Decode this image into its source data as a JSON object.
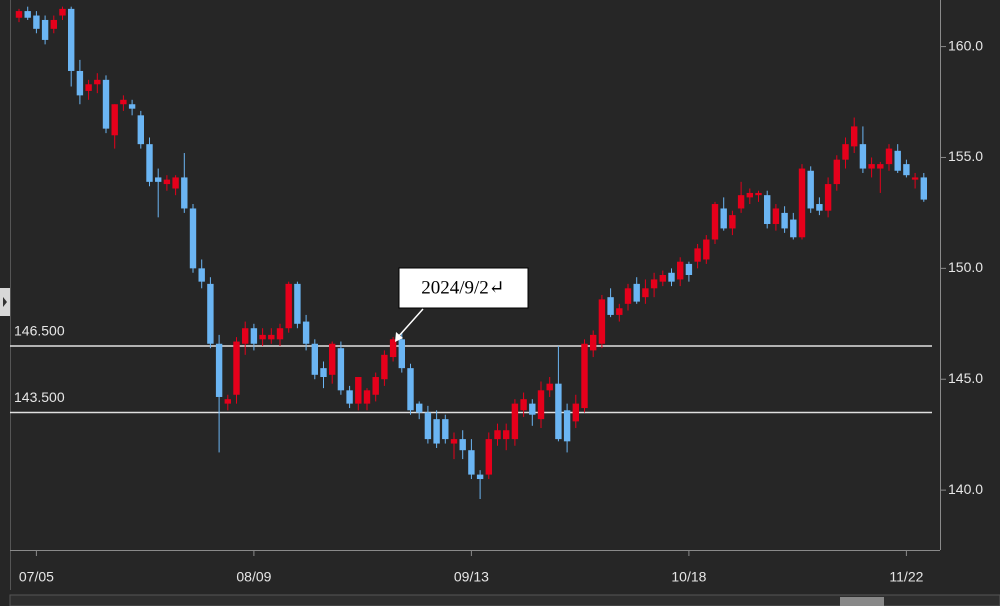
{
  "chart_data": {
    "type": "candlestick",
    "categories": [
      null,
      null,
      "07/05",
      null,
      null,
      null,
      null,
      null,
      null,
      null,
      null,
      null,
      null,
      null,
      null,
      null,
      null,
      null,
      null,
      null,
      null,
      null,
      null,
      null,
      null,
      null,
      null,
      "08/09",
      null,
      null,
      null,
      null,
      null,
      null,
      null,
      null,
      null,
      null,
      null,
      null,
      null,
      null,
      null,
      null,
      null,
      null,
      null,
      null,
      null,
      null,
      null,
      null,
      "09/13",
      null,
      null,
      null,
      null,
      null,
      null,
      null,
      null,
      null,
      null,
      null,
      null,
      null,
      null,
      null,
      null,
      null,
      null,
      null,
      null,
      null,
      null,
      null,
      null,
      "10/18",
      null,
      null,
      null,
      null,
      null,
      null,
      null,
      null,
      null,
      null,
      null,
      null,
      null,
      null,
      null,
      null,
      null,
      null,
      null,
      null,
      null,
      null,
      null,
      null,
      "11/22",
      null,
      null
    ],
    "open": [
      161.3,
      161.6,
      161.4,
      161.2,
      160.8,
      161.4,
      161.7,
      158.9,
      158.0,
      158.3,
      158.5,
      156.0,
      157.4,
      157.4,
      156.9,
      155.6,
      154.1,
      153.8,
      153.6,
      154.1,
      152.7,
      150.0,
      149.3,
      146.6,
      143.9,
      144.3,
      146.6,
      147.3,
      146.8,
      146.8,
      146.8,
      147.3,
      149.3,
      147.6,
      146.6,
      145.5,
      145.2,
      146.4,
      144.5,
      143.9,
      143.9,
      144.3,
      145.0,
      146.0,
      146.8,
      145.5,
      143.9,
      143.5,
      143.2,
      143.2,
      142.1,
      142.3,
      141.8,
      140.7,
      140.7,
      142.3,
      142.3,
      142.3,
      143.6,
      143.9,
      143.2,
      144.5,
      144.8,
      143.6,
      143.1,
      143.7,
      146.3,
      146.6,
      148.7,
      147.9,
      148.4,
      149.3,
      148.7,
      149.1,
      149.4,
      149.8,
      149.5,
      150.2,
      150.3,
      150.4,
      151.3,
      152.7,
      151.8,
      152.7,
      153.2,
      153.3,
      153.3,
      152.0,
      152.5,
      152.2,
      151.4,
      154.4,
      152.9,
      152.6,
      153.8,
      154.9,
      155.5,
      155.6,
      154.5,
      154.5,
      154.7,
      155.3,
      154.7,
      154.0,
      154.1
    ],
    "high": [
      161.7,
      161.8,
      161.6,
      161.4,
      161.4,
      161.8,
      161.8,
      159.4,
      158.5,
      158.8,
      158.7,
      157.4,
      157.8,
      157.6,
      157.1,
      155.9,
      154.5,
      154.2,
      154.2,
      155.2,
      152.9,
      150.4,
      149.6,
      147.0,
      144.3,
      146.9,
      147.6,
      147.5,
      147.3,
      147.3,
      147.5,
      149.4,
      149.4,
      147.9,
      146.8,
      145.8,
      146.7,
      146.7,
      144.7,
      145.1,
      144.6,
      145.3,
      146.3,
      146.9,
      147.1,
      145.7,
      144.0,
      143.8,
      143.6,
      143.4,
      142.6,
      142.7,
      142.3,
      140.9,
      142.6,
      143.0,
      143.0,
      144.1,
      144.4,
      144.1,
      144.9,
      145.1,
      146.5,
      143.9,
      144.3,
      146.8,
      147.2,
      148.8,
      149.1,
      148.4,
      149.3,
      149.6,
      149.5,
      149.8,
      149.9,
      150.0,
      150.5,
      150.3,
      151.1,
      151.5,
      153.0,
      153.2,
      152.6,
      153.9,
      153.6,
      153.5,
      153.5,
      152.9,
      152.8,
      152.5,
      154.7,
      154.6,
      153.2,
      154.1,
      155.1,
      155.9,
      156.8,
      156.4,
      155.0,
      154.8,
      155.6,
      155.6,
      154.9,
      154.3,
      154.3
    ],
    "low": [
      161.1,
      161.2,
      160.6,
      160.1,
      160.6,
      161.2,
      158.2,
      157.4,
      157.6,
      157.9,
      156.1,
      155.4,
      157.1,
      156.9,
      155.4,
      153.7,
      152.3,
      153.5,
      153.3,
      152.5,
      149.8,
      149.1,
      146.4,
      141.7,
      143.6,
      143.9,
      146.1,
      146.3,
      146.5,
      146.6,
      146.5,
      147.1,
      147.3,
      146.3,
      145.0,
      144.6,
      144.8,
      144.3,
      143.7,
      143.6,
      143.6,
      144.0,
      144.7,
      145.8,
      145.3,
      143.4,
      143.2,
      142.1,
      141.9,
      142.1,
      141.4,
      141.4,
      140.5,
      139.6,
      140.5,
      142.0,
      141.8,
      142.0,
      143.3,
      142.9,
      142.8,
      144.2,
      142.2,
      141.7,
      142.8,
      143.5,
      146.0,
      146.4,
      147.8,
      147.6,
      148.1,
      148.4,
      148.4,
      148.7,
      149.2,
      149.2,
      149.2,
      149.4,
      150.0,
      150.2,
      151.1,
      151.7,
      151.5,
      152.5,
      152.9,
      153.0,
      151.8,
      151.7,
      151.6,
      151.3,
      151.3,
      152.5,
      152.4,
      152.3,
      153.5,
      154.5,
      155.2,
      154.3,
      154.1,
      153.4,
      154.4,
      154.3,
      154.1,
      153.6,
      153.0
    ],
    "close": [
      161.6,
      161.3,
      160.8,
      160.3,
      161.2,
      161.7,
      158.9,
      157.8,
      158.3,
      158.5,
      156.3,
      157.4,
      157.6,
      157.2,
      155.6,
      153.9,
      153.9,
      154.0,
      154.1,
      152.7,
      150.0,
      149.4,
      146.6,
      144.2,
      144.1,
      146.7,
      147.3,
      146.6,
      147.0,
      147.0,
      147.3,
      149.3,
      147.5,
      146.6,
      145.2,
      145.1,
      146.6,
      144.5,
      143.9,
      145.1,
      144.5,
      145.1,
      146.1,
      146.8,
      145.5,
      143.6,
      143.5,
      142.3,
      142.1,
      142.3,
      142.3,
      141.8,
      140.7,
      140.5,
      142.3,
      142.7,
      142.7,
      143.9,
      144.1,
      143.4,
      144.5,
      144.8,
      142.3,
      142.2,
      143.9,
      146.6,
      147.0,
      148.6,
      147.9,
      148.2,
      149.1,
      148.5,
      149.1,
      149.5,
      149.7,
      149.4,
      150.3,
      149.7,
      150.9,
      151.3,
      152.9,
      151.8,
      152.4,
      153.3,
      153.4,
      153.4,
      152.0,
      152.7,
      151.8,
      151.4,
      154.5,
      152.7,
      152.6,
      153.8,
      154.9,
      155.6,
      156.4,
      154.5,
      154.7,
      154.7,
      155.4,
      154.4,
      154.2,
      154.1,
      153.1
    ],
    "up_color": "#e5001b",
    "down_color": "#6bb5f3",
    "ylim": [
      137.3,
      162.1
    ],
    "yticks": [
      {
        "value": 140,
        "label": "140.0"
      },
      {
        "value": 145,
        "label": "145.0"
      },
      {
        "value": 150,
        "label": "150.0"
      },
      {
        "value": 155,
        "label": "155.0"
      },
      {
        "value": 160,
        "label": "160.0"
      }
    ],
    "hlines": [
      {
        "value": 146.5,
        "label": "146.500"
      },
      {
        "value": 143.5,
        "label": "143.500"
      }
    ],
    "annotation": "2024/9/2↵"
  }
}
